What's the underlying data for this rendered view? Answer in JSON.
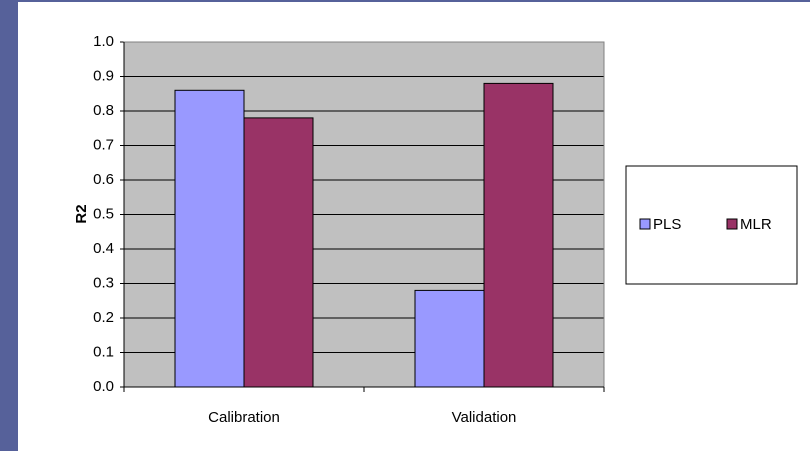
{
  "chart_data": {
    "type": "bar",
    "y_label": "R2",
    "categories": [
      "Calibration",
      "Validation"
    ],
    "series": [
      {
        "name": "PLS",
        "color": "#9999ff",
        "values": [
          0.86,
          0.28
        ]
      },
      {
        "name": "MLR",
        "color": "#993366",
        "values": [
          0.78,
          0.88
        ]
      }
    ],
    "ylim": [
      0,
      1
    ],
    "yticks": [
      {
        "value": 0,
        "label": "0.0"
      },
      0.1,
      0.2,
      0.3,
      0.4,
      0.5,
      0.6,
      0.7,
      0.8,
      0.9,
      {
        "value": 1,
        "label": "1.0"
      }
    ],
    "grid": true,
    "legend": "right"
  }
}
